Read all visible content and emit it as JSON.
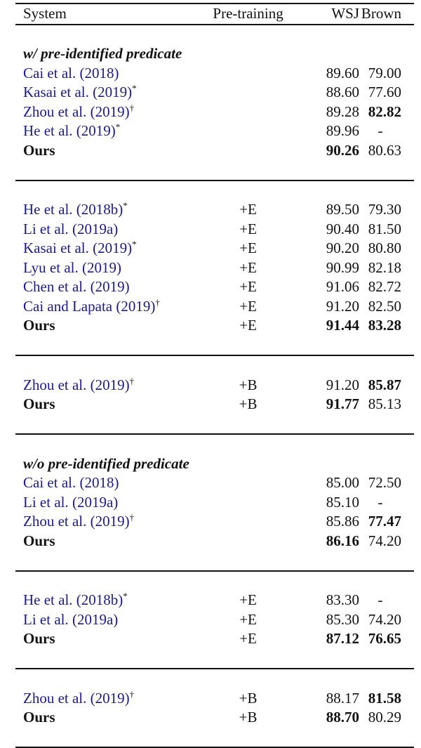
{
  "header": {
    "system": "System",
    "pretraining": "Pre-training",
    "wsj": "WSJ",
    "brown": "Brown"
  },
  "link_color": "#1a1a8c",
  "groups": [
    {
      "section": "w/ pre-identified predicate",
      "rule_after": "single",
      "rows": [
        {
          "system": "Cai et al. (2018)",
          "mark": "",
          "pretraining": "",
          "wsj": "89.60",
          "brown": "79.00"
        },
        {
          "system": "Kasai et al. (2019)",
          "mark": "*",
          "pretraining": "",
          "wsj": "88.60",
          "brown": "77.60"
        },
        {
          "system": "Zhou et al. (2019)",
          "mark": "†",
          "pretraining": "",
          "wsj": "89.28",
          "brown": "82.82",
          "bold_brown": true
        },
        {
          "system": "He et al. (2019)",
          "mark": "*",
          "pretraining": "",
          "wsj": "89.96",
          "brown": "-"
        },
        {
          "system": "Ours",
          "ours": true,
          "pretraining": "",
          "wsj": "90.26",
          "brown": "80.63",
          "bold_wsj": true
        }
      ]
    },
    {
      "section": "",
      "rule_after": "single",
      "rows": [
        {
          "system": "He et al. (2018b)",
          "mark": "*",
          "pretraining": "+E",
          "wsj": "89.50",
          "brown": "79.30"
        },
        {
          "system": "Li et al. (2019a)",
          "mark": "",
          "pretraining": "+E",
          "wsj": "90.40",
          "brown": "81.50"
        },
        {
          "system": "Kasai et al. (2019)",
          "mark": "*",
          "pretraining": "+E",
          "wsj": "90.20",
          "brown": "80.80"
        },
        {
          "system": "Lyu et al. (2019)",
          "mark": "",
          "pretraining": "+E",
          "wsj": "90.99",
          "brown": "82.18"
        },
        {
          "system": "Chen et al. (2019)",
          "mark": "",
          "pretraining": "+E",
          "wsj": "91.06",
          "brown": "82.72"
        },
        {
          "system": "Cai and Lapata (2019)",
          "mark": "†",
          "pretraining": "+E",
          "wsj": "91.20",
          "brown": "82.50"
        },
        {
          "system": "Ours",
          "ours": true,
          "pretraining": "+E",
          "wsj": "91.44",
          "brown": "83.28",
          "bold_wsj": true,
          "bold_brown": true
        }
      ]
    },
    {
      "section": "",
      "rule_after": "double",
      "rows": [
        {
          "system": "Zhou et al. (2019)",
          "mark": "†",
          "pretraining": "+B",
          "wsj": "91.20",
          "brown": "85.87",
          "bold_brown": true
        },
        {
          "system": "Ours",
          "ours": true,
          "pretraining": "+B",
          "wsj": "91.77",
          "brown": "85.13",
          "bold_wsj": true
        }
      ]
    },
    {
      "section": "w/o pre-identified predicate",
      "rule_after": "single",
      "rows": [
        {
          "system": "Cai et al. (2018)",
          "mark": "",
          "pretraining": "",
          "wsj": "85.00",
          "brown": "72.50"
        },
        {
          "system": "Li et al. (2019a)",
          "mark": "",
          "pretraining": "",
          "wsj": "85.10",
          "brown": "-"
        },
        {
          "system": "Zhou et al. (2019)",
          "mark": "†",
          "pretraining": "",
          "wsj": "85.86",
          "brown": "77.47",
          "bold_brown": true
        },
        {
          "system": "Ours",
          "ours": true,
          "pretraining": "",
          "wsj": "86.16",
          "brown": "74.20",
          "bold_wsj": true
        }
      ]
    },
    {
      "section": "",
      "rule_after": "single",
      "rows": [
        {
          "system": "He et al. (2018b)",
          "mark": "*",
          "pretraining": "+E",
          "wsj": "83.30",
          "brown": "-"
        },
        {
          "system": "Li et al. (2019a)",
          "mark": "",
          "pretraining": "+E",
          "wsj": "85.30",
          "brown": "74.20"
        },
        {
          "system": "Ours",
          "ours": true,
          "pretraining": "+E",
          "wsj": "87.12",
          "brown": "76.65",
          "bold_wsj": true,
          "bold_brown": true
        }
      ]
    },
    {
      "section": "",
      "rule_after": "bottom",
      "rows": [
        {
          "system": "Zhou et al. (2019)",
          "mark": "†",
          "pretraining": "+B",
          "wsj": "88.17",
          "brown": "81.58",
          "bold_brown": true
        },
        {
          "system": "Ours",
          "ours": true,
          "pretraining": "+B",
          "wsj": "88.70",
          "brown": "80.29",
          "bold_wsj": true
        }
      ]
    }
  ]
}
